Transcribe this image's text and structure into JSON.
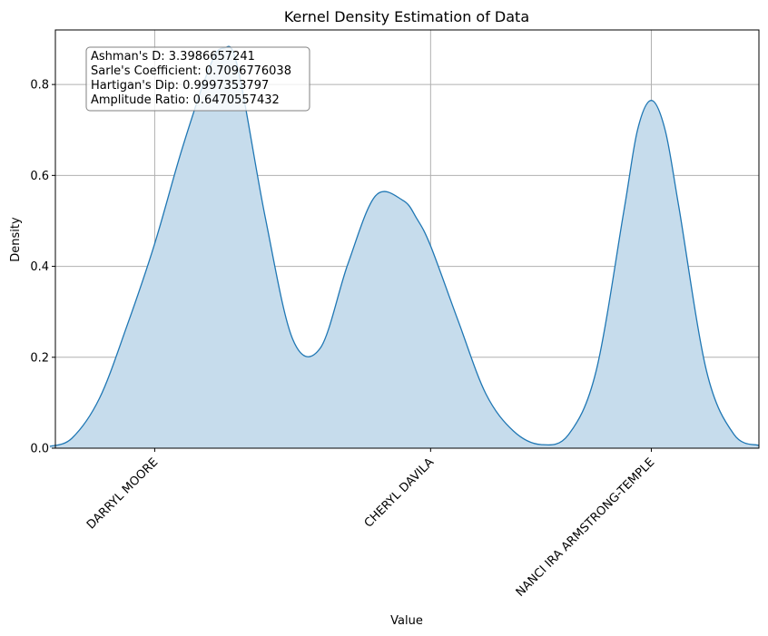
{
  "chart_data": {
    "type": "area",
    "title": "Kernel Density Estimation of Data",
    "xlabel": "Value",
    "ylabel": "Density",
    "ylim": [
      0,
      0.92
    ],
    "xlim": [
      -0.36,
      2.19
    ],
    "grid": true,
    "categories": [
      "DARRYL MOORE",
      "CHERYL DAVILA",
      "NANCI IRA ARMSTRONG-TEMPLE"
    ],
    "category_positions": [
      0,
      1,
      1.8
    ],
    "yticks": [
      0.0,
      0.2,
      0.4,
      0.6,
      0.8
    ],
    "ytick_labels": [
      "0.0",
      "0.2",
      "0.4",
      "0.6",
      "0.8"
    ],
    "series": [
      {
        "color": "#1f77b4",
        "fill": "#c6dcec",
        "x": [
          -0.38,
          -0.3,
          -0.2,
          -0.1,
          0.0,
          0.1,
          0.2,
          0.25,
          0.3,
          0.4,
          0.5,
          0.6,
          0.7,
          0.8,
          0.9,
          0.95,
          1.0,
          1.1,
          1.2,
          1.3,
          1.4,
          1.5,
          1.6,
          1.7,
          1.75,
          1.8,
          1.85,
          1.9,
          2.0,
          2.1,
          2.19
        ],
        "y": [
          0.004,
          0.022,
          0.11,
          0.27,
          0.45,
          0.66,
          0.84,
          0.88,
          0.84,
          0.51,
          0.24,
          0.22,
          0.405,
          0.555,
          0.545,
          0.505,
          0.445,
          0.28,
          0.12,
          0.038,
          0.008,
          0.03,
          0.17,
          0.52,
          0.7,
          0.765,
          0.7,
          0.53,
          0.17,
          0.03,
          0.006
        ]
      }
    ],
    "annotation": [
      "Ashman's D: 3.3986657241",
      "Sarle's Coefficient: 0.7096776038",
      "Hartigan's Dip: 0.9997353797",
      "Amplitude Ratio: 0.6470557432"
    ]
  }
}
